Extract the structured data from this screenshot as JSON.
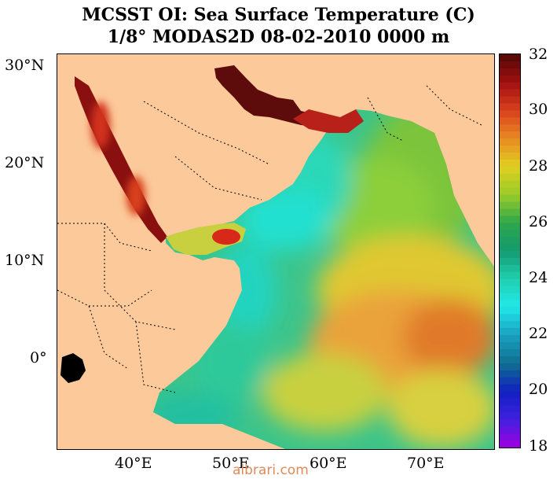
{
  "title_line1": "MCSST OI:  Sea Surface Temperature (C)",
  "title_line2": "1/8° MODAS2D 08-02-2010 0000 m",
  "lat_labels": [
    "30°N",
    "20°N",
    "10°N",
    "0°"
  ],
  "lon_labels": [
    "40°E",
    "50°E",
    "60°E",
    "70°E"
  ],
  "colorbar": {
    "min": 18,
    "max": 32,
    "tick_labels": [
      "32",
      "30",
      "28",
      "26",
      "24",
      "22",
      "20",
      "18"
    ]
  },
  "colors": {
    "land": "#fcc99a",
    "warmest": "#5a0a0a",
    "coolest": "#9a00e0"
  },
  "watermark": "albrari.com"
}
